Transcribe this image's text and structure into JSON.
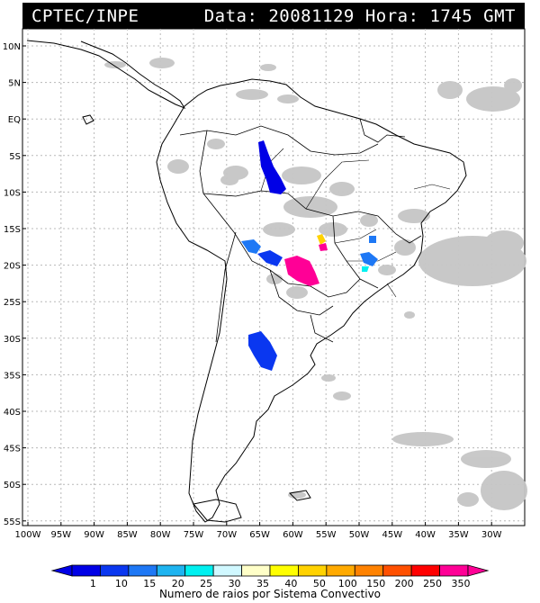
{
  "header": {
    "source": "CPTEC/INPE",
    "date_label": "Data:",
    "date_value": "20081129",
    "time_label": "Hora:",
    "time_value": "1745 GMT"
  },
  "map": {
    "lat_ticks": [
      "10N",
      "5N",
      "EQ",
      "5S",
      "10S",
      "15S",
      "20S",
      "25S",
      "30S",
      "35S",
      "40S",
      "45S",
      "50S",
      "55S"
    ],
    "lon_ticks": [
      "100W",
      "95W",
      "90W",
      "85W",
      "80W",
      "75W",
      "70W",
      "65W",
      "60W",
      "55W",
      "50W",
      "45W",
      "40W",
      "35W",
      "30W"
    ]
  },
  "legend": {
    "values": [
      "1",
      "10",
      "15",
      "20",
      "25",
      "30",
      "35",
      "40",
      "50",
      "100",
      "150",
      "200",
      "250",
      "350"
    ],
    "colors": [
      "#0000e6",
      "#0a37f0",
      "#1e78f5",
      "#1eb4f0",
      "#00f0f0",
      "#d0f8ff",
      "#ffffc8",
      "#ffff00",
      "#ffd200",
      "#ffaa00",
      "#ff8200",
      "#ff5000",
      "#ff0000",
      "#ff0096"
    ],
    "caption": "Numero de raios por Sistema Convectivo"
  },
  "colors": {
    "cloud": "#c8c8c8",
    "coast": "#000000",
    "grid": "#b0b0b0"
  }
}
